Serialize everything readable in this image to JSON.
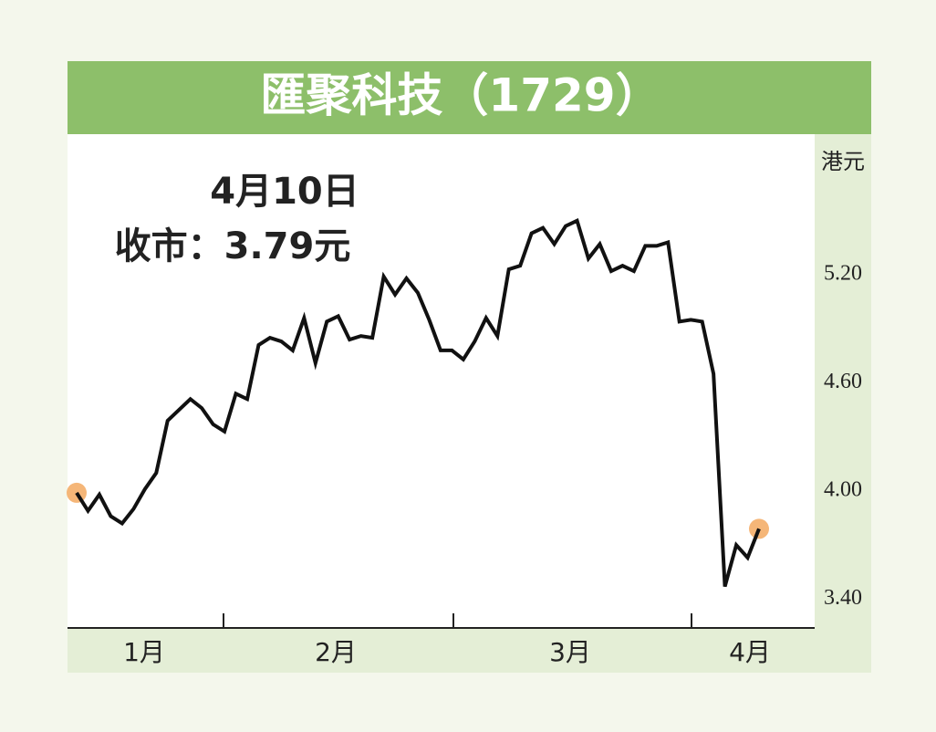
{
  "chart_data": {
    "type": "line",
    "title": "匯聚科技（1729）",
    "y_unit": "港元",
    "annotation_date": "4月10日",
    "annotation_close": "收市：3.79元",
    "month_labels": [
      "1月",
      "2月",
      "3月",
      "4月"
    ],
    "color": "#111111",
    "endpoint_color": "#f5b678",
    "ylim": [
      3.24,
      5.98
    ],
    "yticks": [
      {
        "value": 3.4,
        "label": "3.40"
      },
      {
        "value": 4.0,
        "label": "4.00"
      },
      {
        "value": 4.6,
        "label": "4.60"
      },
      {
        "value": 5.2,
        "label": "5.20"
      }
    ],
    "values": [
      3.99,
      3.89,
      3.98,
      3.86,
      3.82,
      3.9,
      4.01,
      4.1,
      4.39,
      4.45,
      4.51,
      4.46,
      4.37,
      4.33,
      4.54,
      4.51,
      4.81,
      4.85,
      4.83,
      4.78,
      4.96,
      4.71,
      4.94,
      4.97,
      4.84,
      4.86,
      4.85,
      5.19,
      5.09,
      5.18,
      5.1,
      4.95,
      4.78,
      4.78,
      4.73,
      4.83,
      4.96,
      4.86,
      5.23,
      5.25,
      5.43,
      5.46,
      5.37,
      5.47,
      5.5,
      5.29,
      5.37,
      5.22,
      5.25,
      5.22,
      5.36,
      5.36,
      5.38,
      4.94,
      4.95,
      4.94,
      4.65,
      3.47,
      3.7,
      3.63,
      3.79
    ]
  }
}
